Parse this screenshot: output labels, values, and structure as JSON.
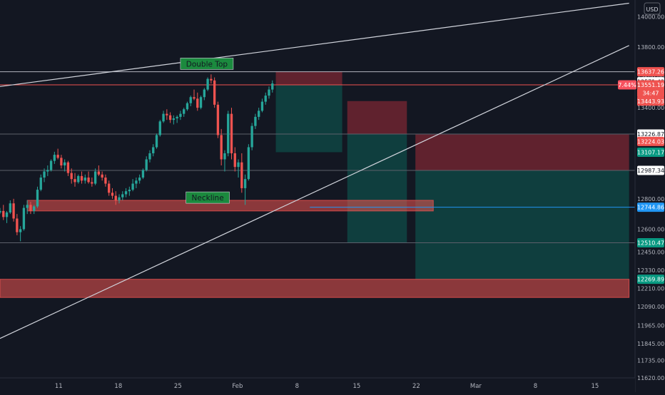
{
  "chart_data": {
    "type": "candlestick",
    "title": "",
    "currency": "USD",
    "colors": {
      "background": "#131722",
      "up": "#26a69a",
      "down": "#ef5350",
      "grid": "#2a2e39",
      "axis_text": "#b2b5be"
    },
    "x_axis": {
      "ticks": [
        {
          "label": "11",
          "x": 11
        },
        {
          "label": "18",
          "x": 18
        },
        {
          "label": "25",
          "x": 25
        },
        {
          "label": "Feb",
          "x": 32
        },
        {
          "label": "8",
          "x": 39
        },
        {
          "label": "15",
          "x": 46
        },
        {
          "label": "22",
          "x": 53
        },
        {
          "label": "Mar",
          "x": 60
        },
        {
          "label": "8",
          "x": 67
        },
        {
          "label": "15",
          "x": 74
        }
      ],
      "range": [
        4.1,
        78.7
      ]
    },
    "y_axis": {
      "range": [
        11620,
        14110
      ],
      "ticks": [
        "14000.00",
        "13800.00",
        "13600.00",
        "13400.00",
        "13200.00",
        "13000.00",
        "12800.00",
        "12600.00",
        "12450.00",
        "12330.00",
        "12210.00",
        "12090.00",
        "11965.00",
        "11845.00",
        "11735.00",
        "11620.00"
      ],
      "price_labels": [
        {
          "text": "13637.26",
          "value": 13637.26,
          "bg": "#ef5350"
        },
        {
          "text": "13571.43",
          "value": 13571.43,
          "bg": "#ffffff",
          "fg": "#131722"
        },
        {
          "text": "13551.19",
          "value": 13551.19,
          "bg": "#ef5350"
        },
        {
          "text": "34:47",
          "value": 13498,
          "bg": "#ef5350"
        },
        {
          "text": "13443.93",
          "value": 13443.93,
          "bg": "#ef5350"
        },
        {
          "text": "13226.87",
          "value": 13226.87,
          "bg": "#ffffff",
          "fg": "#131722"
        },
        {
          "text": "13224.03",
          "value": 13178,
          "bg": "#ef5350"
        },
        {
          "text": "13107.17",
          "value": 13107.17,
          "bg": "#089981"
        },
        {
          "text": "12987.34",
          "value": 12987.34,
          "bg": "#ffffff",
          "fg": "#131722"
        },
        {
          "text": "12744.86",
          "value": 12744.86,
          "bg": "#2196f3"
        },
        {
          "text": "12510.47",
          "value": 12510.47,
          "bg": "#089981"
        },
        {
          "text": "12269.89",
          "value": 12269.89,
          "bg": "#089981"
        }
      ],
      "badge": {
        "text": "7.44%",
        "value": 13551.19
      }
    },
    "candles": [
      [
        4.1,
        12710,
        12740,
        12700,
        12720
      ],
      [
        4.5,
        12720,
        12760,
        12660,
        12680
      ],
      [
        4.9,
        12680,
        12720,
        12640,
        12710
      ],
      [
        5.3,
        12710,
        12790,
        12700,
        12770
      ],
      [
        5.7,
        12770,
        12800,
        12650,
        12670
      ],
      [
        6.1,
        12670,
        12700,
        12560,
        12580
      ],
      [
        6.5,
        12580,
        12620,
        12520,
        12600
      ],
      [
        6.9,
        12600,
        12760,
        12590,
        12740
      ],
      [
        7.3,
        12740,
        12790,
        12700,
        12760
      ],
      [
        7.7,
        12760,
        12780,
        12700,
        12720
      ],
      [
        8.1,
        12720,
        12760,
        12700,
        12750
      ],
      [
        8.5,
        12750,
        12880,
        12740,
        12860
      ],
      [
        8.9,
        12860,
        12960,
        12850,
        12940
      ],
      [
        9.3,
        12940,
        13000,
        12910,
        12980
      ],
      [
        9.7,
        12980,
        13020,
        12950,
        12990
      ],
      [
        10.1,
        12990,
        13060,
        12980,
        13050
      ],
      [
        10.5,
        13050,
        13110,
        13030,
        13090
      ],
      [
        10.9,
        13090,
        13130,
        13060,
        13070
      ],
      [
        11.3,
        13070,
        13090,
        13000,
        13020
      ],
      [
        11.7,
        13020,
        13060,
        12980,
        13040
      ],
      [
        12.1,
        13040,
        13050,
        12950,
        12970
      ],
      [
        12.5,
        12970,
        13000,
        12900,
        12930
      ],
      [
        12.9,
        12930,
        12970,
        12880,
        12910
      ],
      [
        13.3,
        12910,
        12960,
        12900,
        12950
      ],
      [
        13.7,
        12950,
        12980,
        12900,
        12920
      ],
      [
        14.1,
        12920,
        12960,
        12900,
        12940
      ],
      [
        14.5,
        12940,
        12980,
        12900,
        12910
      ],
      [
        14.9,
        12910,
        12940,
        12880,
        12900
      ],
      [
        15.3,
        12900,
        13000,
        12890,
        12980
      ],
      [
        15.7,
        12980,
        13020,
        12950,
        12960
      ],
      [
        16.1,
        12960,
        12980,
        12920,
        12940
      ],
      [
        16.5,
        12940,
        12960,
        12880,
        12900
      ],
      [
        16.9,
        12900,
        12920,
        12820,
        12840
      ],
      [
        17.3,
        12840,
        12870,
        12800,
        12820
      ],
      [
        17.7,
        12820,
        12850,
        12760,
        12790
      ],
      [
        18.1,
        12790,
        12830,
        12770,
        12810
      ],
      [
        18.5,
        12810,
        12850,
        12790,
        12830
      ],
      [
        18.9,
        12830,
        12870,
        12810,
        12850
      ],
      [
        19.3,
        12850,
        12880,
        12820,
        12860
      ],
      [
        19.7,
        12860,
        12930,
        12850,
        12900
      ],
      [
        20.1,
        12900,
        12940,
        12870,
        12920
      ],
      [
        20.5,
        12920,
        12960,
        12900,
        12940
      ],
      [
        20.9,
        12940,
        13000,
        12930,
        12990
      ],
      [
        21.3,
        12990,
        13080,
        12980,
        13060
      ],
      [
        21.7,
        13060,
        13120,
        13040,
        13100
      ],
      [
        22.1,
        13100,
        13160,
        13080,
        13140
      ],
      [
        22.5,
        13140,
        13230,
        13130,
        13220
      ],
      [
        22.9,
        13220,
        13320,
        13210,
        13310
      ],
      [
        23.3,
        13310,
        13380,
        13300,
        13360
      ],
      [
        23.7,
        13360,
        13390,
        13320,
        13350
      ],
      [
        24.1,
        13350,
        13370,
        13300,
        13320
      ],
      [
        24.5,
        13320,
        13350,
        13290,
        13330
      ],
      [
        24.9,
        13330,
        13350,
        13300,
        13340
      ],
      [
        25.3,
        13340,
        13380,
        13320,
        13360
      ],
      [
        25.7,
        13360,
        13400,
        13340,
        13390
      ],
      [
        26.1,
        13390,
        13440,
        13380,
        13430
      ],
      [
        26.5,
        13430,
        13480,
        13410,
        13470
      ],
      [
        26.9,
        13470,
        13520,
        13450,
        13460
      ],
      [
        27.3,
        13460,
        13500,
        13380,
        13400
      ],
      [
        27.7,
        13400,
        13480,
        13390,
        13470
      ],
      [
        28.1,
        13470,
        13530,
        13450,
        13520
      ],
      [
        28.5,
        13520,
        13600,
        13510,
        13590
      ],
      [
        28.9,
        13590,
        13620,
        13560,
        13580
      ],
      [
        29.3,
        13580,
        13600,
        13400,
        13420
      ],
      [
        29.7,
        13420,
        13440,
        13200,
        13220
      ],
      [
        30.1,
        13220,
        13260,
        13020,
        13060
      ],
      [
        30.5,
        13060,
        13120,
        12980,
        13100
      ],
      [
        30.9,
        13100,
        13380,
        13080,
        13360
      ],
      [
        31.3,
        13360,
        13400,
        13060,
        13100
      ],
      [
        31.7,
        13100,
        13140,
        12980,
        13010
      ],
      [
        32.1,
        13010,
        13060,
        12940,
        13040
      ],
      [
        32.5,
        13040,
        13100,
        12840,
        12870
      ],
      [
        32.9,
        12870,
        12960,
        12760,
        12930
      ],
      [
        33.3,
        12930,
        13160,
        12920,
        13140
      ],
      [
        33.7,
        13140,
        13300,
        13120,
        13280
      ],
      [
        34.1,
        13280,
        13360,
        13260,
        13340
      ],
      [
        34.5,
        13340,
        13400,
        13320,
        13380
      ],
      [
        34.9,
        13380,
        13460,
        13370,
        13440
      ],
      [
        35.3,
        13440,
        13500,
        13420,
        13480
      ],
      [
        35.7,
        13480,
        13540,
        13460,
        13520
      ],
      [
        36.1,
        13520,
        13580,
        13500,
        13560
      ]
    ],
    "trend_lines": [
      {
        "points": [
          [
            4.1,
            13540
          ],
          [
            78.0,
            14089
          ]
        ],
        "color": "#d1d4dc"
      },
      {
        "points": [
          [
            4.1,
            11880
          ],
          [
            78.0,
            13810
          ]
        ],
        "color": "#d1d4dc"
      }
    ],
    "horizontal_lines": [
      {
        "value": 13637.26,
        "from": 4.1,
        "color": "#b2b5be"
      },
      {
        "value": 13551.19,
        "from": 4.1,
        "color": "#ef5350"
      },
      {
        "value": 13226.87,
        "from": 4.1,
        "color": "#5d606b"
      },
      {
        "value": 12987.34,
        "from": 4.1,
        "color": "#5d606b"
      },
      {
        "value": 12744.86,
        "from": 40.5,
        "color": "#2196f3"
      },
      {
        "value": 12510.47,
        "from": 4.1,
        "color": "#5d606b"
      }
    ],
    "zones": [
      {
        "type": "stop",
        "x1": 36.5,
        "x2": 44.3,
        "y1": 13551.19,
        "y2": 13640
      },
      {
        "type": "target",
        "x1": 36.5,
        "x2": 44.3,
        "y1": 13107.17,
        "y2": 13551.19
      },
      {
        "type": "stop",
        "x1": 44.9,
        "x2": 51.9,
        "y1": 13226.87,
        "y2": 13443.93
      },
      {
        "type": "target",
        "x1": 44.9,
        "x2": 51.9,
        "y1": 12510.47,
        "y2": 13226.87
      },
      {
        "type": "stop",
        "x1": 52.9,
        "x2": 78.0,
        "y1": 12987.34,
        "y2": 13224.03
      },
      {
        "type": "target",
        "x1": 52.9,
        "x2": 78.0,
        "y1": 12269.89,
        "y2": 12987.34
      },
      {
        "type": "support",
        "x1": 7.3,
        "x2": 55.0,
        "y1": 12720,
        "y2": 12790
      },
      {
        "type": "support",
        "x1": 4.1,
        "x2": 78.0,
        "y1": 12150,
        "y2": 12269.89
      }
    ],
    "annotations": [
      {
        "text": "Double Top",
        "x": 28.4,
        "y": 13690
      },
      {
        "text": "Neckline",
        "x": 28.5,
        "y": 12808
      }
    ]
  }
}
